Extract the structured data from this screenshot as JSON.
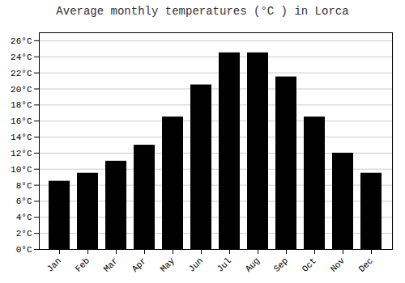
{
  "chart_data": {
    "type": "bar",
    "title": "Average monthly temperatures (°C ) in Lorca",
    "categories": [
      "Jan",
      "Feb",
      "Mar",
      "Apr",
      "May",
      "Jun",
      "Jul",
      "Aug",
      "Sep",
      "Oct",
      "Nov",
      "Dec"
    ],
    "values": [
      8.5,
      9.5,
      11.0,
      13.0,
      16.5,
      20.5,
      24.5,
      24.5,
      21.5,
      16.5,
      12.0,
      9.5
    ],
    "ylim": [
      0,
      27
    ],
    "yticks": [
      {
        "value": 0,
        "label": "0°C"
      },
      {
        "value": 2,
        "label": "2°C"
      },
      {
        "value": 4,
        "label": "4°C"
      },
      {
        "value": 6,
        "label": "6°C"
      },
      {
        "value": 8,
        "label": "8°C"
      },
      {
        "value": 10,
        "label": "10°C"
      },
      {
        "value": 12,
        "label": "12°C"
      },
      {
        "value": 14,
        "label": "14°C"
      },
      {
        "value": 16,
        "label": "16°C"
      },
      {
        "value": 18,
        "label": "18°C"
      },
      {
        "value": 20,
        "label": "20°C"
      },
      {
        "value": 22,
        "label": "22°C"
      },
      {
        "value": 24,
        "label": "24°C"
      },
      {
        "value": 26,
        "label": "26°C"
      }
    ],
    "grid": true
  }
}
